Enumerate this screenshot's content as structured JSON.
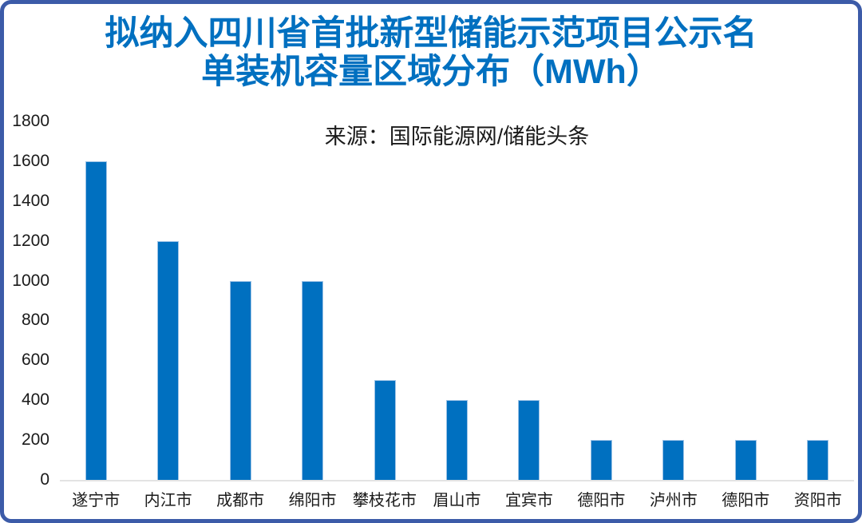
{
  "frame": {
    "border_color": "#3C5BA8",
    "background_color": "#FFFFFF"
  },
  "chart_data": {
    "type": "bar",
    "title_lines": [
      "拟纳入四川省首批新型储能示范项目公示名",
      "单装机容量区域分布（MWh）"
    ],
    "subtitle": "来源：国际能源网/储能头条",
    "categories": [
      "遂宁市",
      "内江市",
      "成都市",
      "绵阳市",
      "攀枝花市",
      "眉山市",
      "宜宾市",
      "德阳市",
      "泸州市",
      "德阳市",
      "资阳市"
    ],
    "values": [
      1600,
      1200,
      1000,
      1000,
      500,
      400,
      400,
      200,
      200,
      200,
      200
    ],
    "xlabel": "",
    "ylabel": "",
    "ylim": [
      0,
      1800
    ],
    "yticks": [
      1800,
      1600,
      1400,
      1200,
      1000,
      800,
      600,
      400,
      200,
      0
    ],
    "grid": false,
    "legend": "none",
    "title_color": "#0070C0",
    "bar_color": "#0070C0",
    "axis_line_color": "#E3E3E3",
    "text_color": "#1A1A1A"
  }
}
